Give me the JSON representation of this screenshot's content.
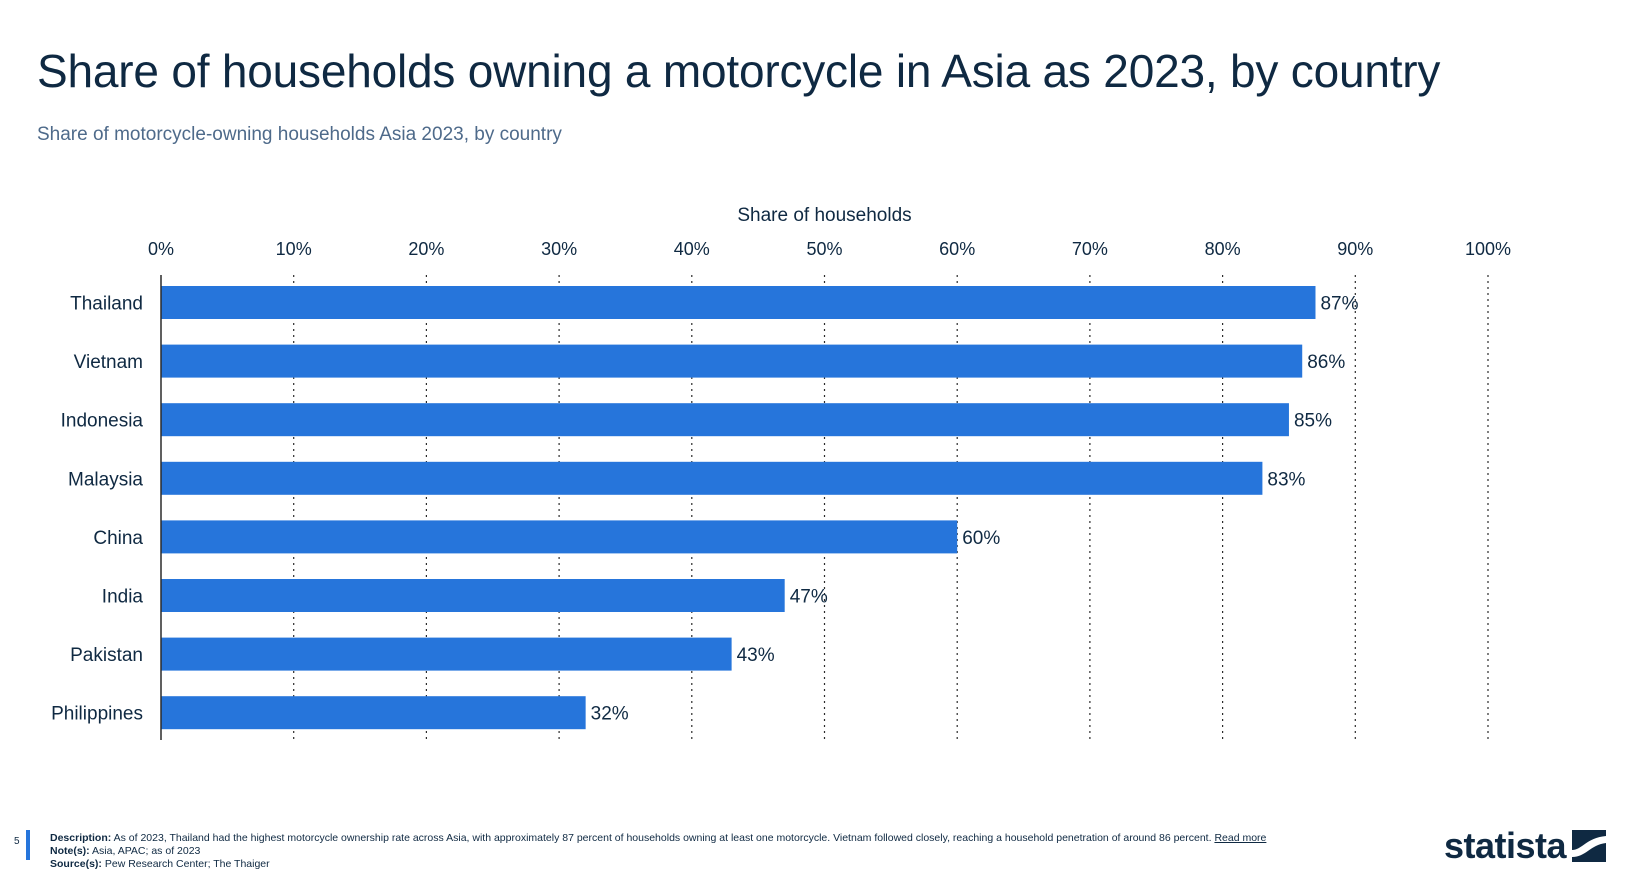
{
  "title": "Share of households owning a motorcycle in Asia as 2023, by country",
  "subtitle": "Share of motorcycle-owning households Asia 2023, by country",
  "chart_data": {
    "type": "bar",
    "orientation": "horizontal",
    "xlabel": "Share of households",
    "ylabel": "",
    "xlim": [
      0,
      100
    ],
    "x_ticks": [
      "0%",
      "10%",
      "20%",
      "30%",
      "40%",
      "50%",
      "60%",
      "70%",
      "80%",
      "90%",
      "100%"
    ],
    "grid": true,
    "categories": [
      "Thailand",
      "Vietnam",
      "Indonesia",
      "Malaysia",
      "China",
      "India",
      "Pakistan",
      "Philippines"
    ],
    "values": [
      87,
      86,
      85,
      83,
      60,
      47,
      43,
      32
    ],
    "value_labels": [
      "87%",
      "86%",
      "85%",
      "83%",
      "60%",
      "47%",
      "43%",
      "32%"
    ],
    "bar_color": "#2675db"
  },
  "footer": {
    "page_number": "5",
    "description_label": "Description:",
    "description": "As of 2023, Thailand had the highest motorcycle ownership rate across Asia, with approximately 87 percent of households owning at least one motorcycle. Vietnam followed closely, reaching a household penetration of around 86 percent.",
    "read_more": "Read more",
    "notes_label": "Note(s):",
    "notes": "Asia, APAC; as of 2023",
    "sources_label": "Source(s):",
    "sources": "Pew Research Center; The Thaiger"
  },
  "logo": {
    "text": "statista",
    "icon": "statista-logo-icon"
  }
}
